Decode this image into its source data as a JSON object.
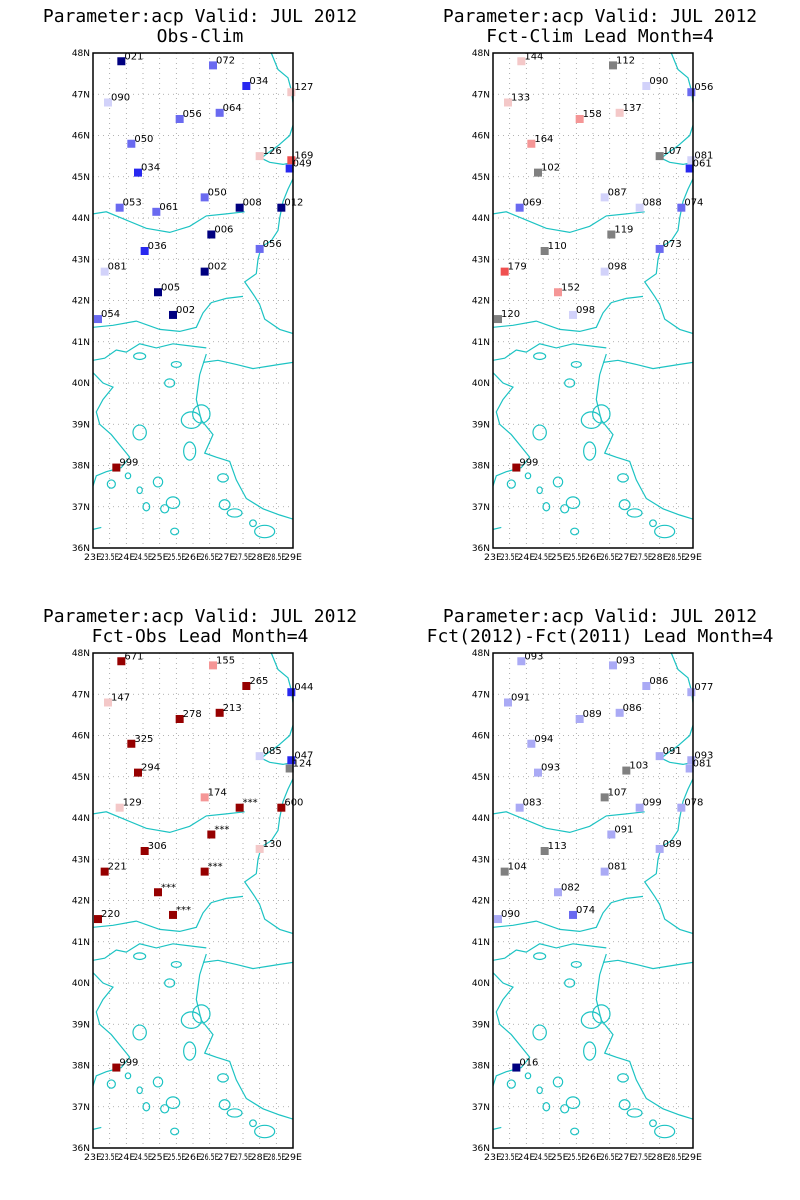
{
  "axes": {
    "lat_labels": [
      "48N",
      "47N",
      "46N",
      "45N",
      "44N",
      "43N",
      "42N",
      "41N",
      "40N",
      "39N",
      "38N",
      "37N",
      "36N"
    ],
    "lon_labels": [
      "23E",
      "23.5E",
      "24E",
      "24.5E",
      "25E",
      "25.5E",
      "26E",
      "26.5E",
      "27E",
      "27.5E",
      "28E",
      "28.5E",
      "29E"
    ],
    "lat_range": [
      36,
      48
    ],
    "lon_range": [
      23,
      29
    ],
    "grid": true
  },
  "colors": {
    "coastline": "#1cc3c3",
    "navy": "#000080",
    "blue": "#2828f0",
    "mid_blue": "#6a6af0",
    "light_blue": "#aaaaf5",
    "pale_blue": "#d2d2fa",
    "gray": "#808080",
    "pink": "#f4c8c8",
    "salmon": "#f59696",
    "red": "#f05050",
    "dark_red": "#960000"
  },
  "panels": [
    {
      "title_line1": "Parameter:acp Valid: JUL 2012",
      "title_line2": "Obs-Clim",
      "stations": [
        {
          "lon": 23.85,
          "lat": 47.8,
          "label": "021",
          "color": "navy"
        },
        {
          "lon": 26.6,
          "lat": 47.7,
          "label": "072",
          "color": "mid_blue"
        },
        {
          "lon": 27.6,
          "lat": 47.2,
          "label": "034",
          "color": "blue"
        },
        {
          "lon": 28.95,
          "lat": 47.05,
          "label": "127",
          "color": "pink"
        },
        {
          "lon": 23.45,
          "lat": 46.8,
          "label": "090",
          "color": "pale_blue"
        },
        {
          "lon": 25.6,
          "lat": 46.4,
          "label": "056",
          "color": "mid_blue"
        },
        {
          "lon": 26.8,
          "lat": 46.55,
          "label": "064",
          "color": "mid_blue"
        },
        {
          "lon": 24.15,
          "lat": 45.8,
          "label": "050",
          "color": "mid_blue"
        },
        {
          "lon": 28.0,
          "lat": 45.5,
          "label": "126",
          "color": "pink"
        },
        {
          "lon": 28.95,
          "lat": 45.4,
          "label": "169",
          "color": "red"
        },
        {
          "lon": 28.9,
          "lat": 45.2,
          "label": "049",
          "color": "blue"
        },
        {
          "lon": 24.35,
          "lat": 45.1,
          "label": "034",
          "color": "blue"
        },
        {
          "lon": 26.35,
          "lat": 44.5,
          "label": "050",
          "color": "mid_blue"
        },
        {
          "lon": 23.8,
          "lat": 44.25,
          "label": "053",
          "color": "mid_blue"
        },
        {
          "lon": 24.9,
          "lat": 44.15,
          "label": "061",
          "color": "mid_blue"
        },
        {
          "lon": 27.4,
          "lat": 44.25,
          "label": "008",
          "color": "navy"
        },
        {
          "lon": 28.65,
          "lat": 44.25,
          "label": "012",
          "color": "navy"
        },
        {
          "lon": 26.55,
          "lat": 43.6,
          "label": "006",
          "color": "navy"
        },
        {
          "lon": 24.55,
          "lat": 43.2,
          "label": "036",
          "color": "blue"
        },
        {
          "lon": 28.0,
          "lat": 43.25,
          "label": "056",
          "color": "mid_blue"
        },
        {
          "lon": 23.35,
          "lat": 42.7,
          "label": "081",
          "color": "pale_blue"
        },
        {
          "lon": 26.35,
          "lat": 42.7,
          "label": "002",
          "color": "navy"
        },
        {
          "lon": 24.95,
          "lat": 42.2,
          "label": "005",
          "color": "navy"
        },
        {
          "lon": 25.4,
          "lat": 41.65,
          "label": "002",
          "color": "navy"
        },
        {
          "lon": 23.15,
          "lat": 41.55,
          "label": "054",
          "color": "mid_blue"
        },
        {
          "lon": 23.7,
          "lat": 37.95,
          "label": "999",
          "color": "dark_red"
        }
      ]
    },
    {
      "title_line1": "Parameter:acp Valid: JUL 2012",
      "title_line2": "Fct-Clim Lead Month=4",
      "stations": [
        {
          "lon": 23.85,
          "lat": 47.8,
          "label": "144",
          "color": "pink"
        },
        {
          "lon": 26.6,
          "lat": 47.7,
          "label": "112",
          "color": "gray"
        },
        {
          "lon": 27.6,
          "lat": 47.2,
          "label": "090",
          "color": "pale_blue"
        },
        {
          "lon": 28.95,
          "lat": 47.05,
          "label": "056",
          "color": "mid_blue"
        },
        {
          "lon": 23.45,
          "lat": 46.8,
          "label": "133",
          "color": "pink"
        },
        {
          "lon": 25.6,
          "lat": 46.4,
          "label": "158",
          "color": "salmon"
        },
        {
          "lon": 26.8,
          "lat": 46.55,
          "label": "137",
          "color": "pink"
        },
        {
          "lon": 24.15,
          "lat": 45.8,
          "label": "164",
          "color": "salmon"
        },
        {
          "lon": 28.0,
          "lat": 45.5,
          "label": "107",
          "color": "gray"
        },
        {
          "lon": 28.95,
          "lat": 45.4,
          "label": "081",
          "color": "pale_blue"
        },
        {
          "lon": 28.9,
          "lat": 45.2,
          "label": "061",
          "color": "blue"
        },
        {
          "lon": 24.35,
          "lat": 45.1,
          "label": "102",
          "color": "gray"
        },
        {
          "lon": 26.35,
          "lat": 44.5,
          "label": "087",
          "color": "pale_blue"
        },
        {
          "lon": 23.8,
          "lat": 44.25,
          "label": "069",
          "color": "mid_blue"
        },
        {
          "lon": 27.4,
          "lat": 44.25,
          "label": "088",
          "color": "pale_blue"
        },
        {
          "lon": 28.65,
          "lat": 44.25,
          "label": "074",
          "color": "mid_blue"
        },
        {
          "lon": 26.55,
          "lat": 43.6,
          "label": "119",
          "color": "gray"
        },
        {
          "lon": 24.55,
          "lat": 43.2,
          "label": "110",
          "color": "gray"
        },
        {
          "lon": 28.0,
          "lat": 43.25,
          "label": "073",
          "color": "mid_blue"
        },
        {
          "lon": 23.35,
          "lat": 42.7,
          "label": "179",
          "color": "red"
        },
        {
          "lon": 26.35,
          "lat": 42.7,
          "label": "098",
          "color": "pale_blue"
        },
        {
          "lon": 24.95,
          "lat": 42.2,
          "label": "152",
          "color": "salmon"
        },
        {
          "lon": 25.4,
          "lat": 41.65,
          "label": "098",
          "color": "pale_blue"
        },
        {
          "lon": 23.15,
          "lat": 41.55,
          "label": "120",
          "color": "gray"
        },
        {
          "lon": 23.7,
          "lat": 37.95,
          "label": "999",
          "color": "dark_red"
        }
      ]
    },
    {
      "title_line1": "Parameter:acp Valid: JUL 2012",
      "title_line2": "Fct-Obs Lead Month=4",
      "stations": [
        {
          "lon": 23.85,
          "lat": 47.8,
          "label": "671",
          "color": "dark_red"
        },
        {
          "lon": 26.6,
          "lat": 47.7,
          "label": "155",
          "color": "salmon"
        },
        {
          "lon": 27.6,
          "lat": 47.2,
          "label": "265",
          "color": "dark_red"
        },
        {
          "lon": 28.95,
          "lat": 47.05,
          "label": "044",
          "color": "blue"
        },
        {
          "lon": 23.45,
          "lat": 46.8,
          "label": "147",
          "color": "pink"
        },
        {
          "lon": 25.6,
          "lat": 46.4,
          "label": "278",
          "color": "dark_red"
        },
        {
          "lon": 26.8,
          "lat": 46.55,
          "label": "213",
          "color": "dark_red"
        },
        {
          "lon": 24.15,
          "lat": 45.8,
          "label": "325",
          "color": "dark_red"
        },
        {
          "lon": 28.0,
          "lat": 45.5,
          "label": "085",
          "color": "pale_blue"
        },
        {
          "lon": 28.95,
          "lat": 45.4,
          "label": "047",
          "color": "blue"
        },
        {
          "lon": 28.9,
          "lat": 45.2,
          "label": "124",
          "color": "gray"
        },
        {
          "lon": 24.35,
          "lat": 45.1,
          "label": "294",
          "color": "dark_red"
        },
        {
          "lon": 26.35,
          "lat": 44.5,
          "label": "174",
          "color": "salmon"
        },
        {
          "lon": 23.8,
          "lat": 44.25,
          "label": "129",
          "color": "pink"
        },
        {
          "lon": 27.4,
          "lat": 44.25,
          "label": "***",
          "color": "dark_red"
        },
        {
          "lon": 28.65,
          "lat": 44.25,
          "label": "600",
          "color": "dark_red"
        },
        {
          "lon": 26.55,
          "lat": 43.6,
          "label": "***",
          "color": "dark_red"
        },
        {
          "lon": 24.55,
          "lat": 43.2,
          "label": "306",
          "color": "dark_red"
        },
        {
          "lon": 28.0,
          "lat": 43.25,
          "label": "130",
          "color": "pink"
        },
        {
          "lon": 23.35,
          "lat": 42.7,
          "label": "221",
          "color": "dark_red"
        },
        {
          "lon": 26.35,
          "lat": 42.7,
          "label": "***",
          "color": "dark_red"
        },
        {
          "lon": 24.95,
          "lat": 42.2,
          "label": "***",
          "color": "dark_red"
        },
        {
          "lon": 25.4,
          "lat": 41.65,
          "label": "***",
          "color": "dark_red"
        },
        {
          "lon": 23.15,
          "lat": 41.55,
          "label": "220",
          "color": "dark_red"
        },
        {
          "lon": 23.7,
          "lat": 37.95,
          "label": "999",
          "color": "dark_red"
        }
      ]
    },
    {
      "title_line1": "Parameter:acp Valid: JUL 2012",
      "title_line2": "Fct(2012)-Fct(2011) Lead Month=4",
      "stations": [
        {
          "lon": 23.85,
          "lat": 47.8,
          "label": "093",
          "color": "light_blue"
        },
        {
          "lon": 26.6,
          "lat": 47.7,
          "label": "093",
          "color": "light_blue"
        },
        {
          "lon": 27.6,
          "lat": 47.2,
          "label": "086",
          "color": "light_blue"
        },
        {
          "lon": 28.95,
          "lat": 47.05,
          "label": "077",
          "color": "light_blue"
        },
        {
          "lon": 23.45,
          "lat": 46.8,
          "label": "091",
          "color": "light_blue"
        },
        {
          "lon": 25.6,
          "lat": 46.4,
          "label": "089",
          "color": "light_blue"
        },
        {
          "lon": 26.8,
          "lat": 46.55,
          "label": "086",
          "color": "light_blue"
        },
        {
          "lon": 24.15,
          "lat": 45.8,
          "label": "094",
          "color": "light_blue"
        },
        {
          "lon": 28.0,
          "lat": 45.5,
          "label": "091",
          "color": "light_blue"
        },
        {
          "lon": 28.95,
          "lat": 45.4,
          "label": "093",
          "color": "light_blue"
        },
        {
          "lon": 28.9,
          "lat": 45.2,
          "label": "081",
          "color": "light_blue"
        },
        {
          "lon": 24.35,
          "lat": 45.1,
          "label": "093",
          "color": "light_blue"
        },
        {
          "lon": 26.35,
          "lat": 44.5,
          "label": "107",
          "color": "gray"
        },
        {
          "lon": 27.0,
          "lat": 45.15,
          "label": "103",
          "color": "gray"
        },
        {
          "lon": 23.8,
          "lat": 44.25,
          "label": "083",
          "color": "light_blue"
        },
        {
          "lon": 27.4,
          "lat": 44.25,
          "label": "099",
          "color": "light_blue"
        },
        {
          "lon": 28.65,
          "lat": 44.25,
          "label": "078",
          "color": "light_blue"
        },
        {
          "lon": 26.55,
          "lat": 43.6,
          "label": "091",
          "color": "light_blue"
        },
        {
          "lon": 24.55,
          "lat": 43.2,
          "label": "113",
          "color": "gray"
        },
        {
          "lon": 28.0,
          "lat": 43.25,
          "label": "089",
          "color": "light_blue"
        },
        {
          "lon": 23.35,
          "lat": 42.7,
          "label": "104",
          "color": "gray"
        },
        {
          "lon": 26.35,
          "lat": 42.7,
          "label": "081",
          "color": "light_blue"
        },
        {
          "lon": 24.95,
          "lat": 42.2,
          "label": "082",
          "color": "light_blue"
        },
        {
          "lon": 25.4,
          "lat": 41.65,
          "label": "074",
          "color": "mid_blue"
        },
        {
          "lon": 23.15,
          "lat": 41.55,
          "label": "090",
          "color": "light_blue"
        },
        {
          "lon": 23.7,
          "lat": 37.95,
          "label": "016",
          "color": "navy"
        }
      ]
    }
  ]
}
